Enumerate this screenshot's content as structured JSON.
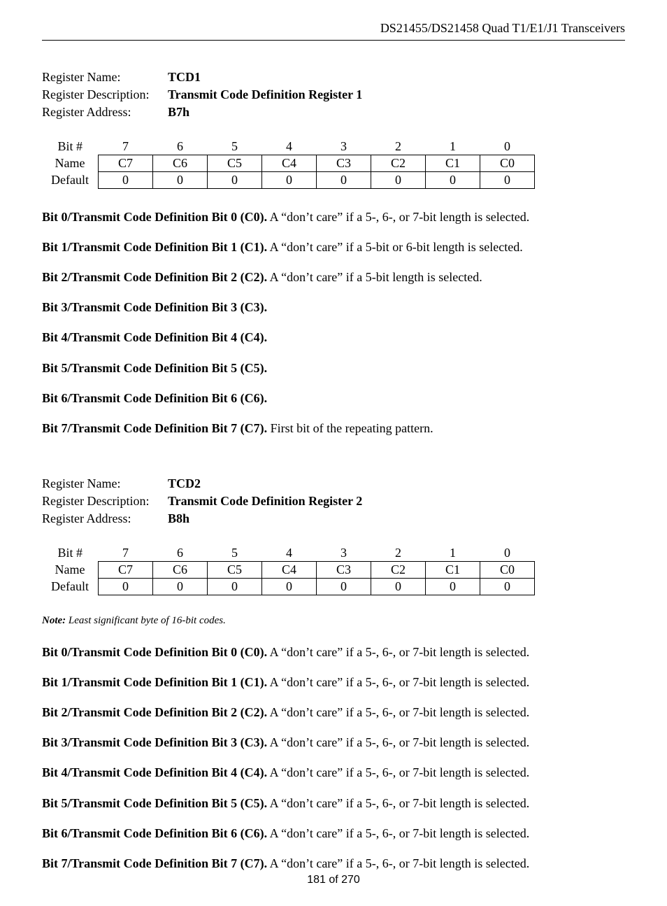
{
  "header": "DS21455/DS21458 Quad T1/E1/J1 Transceivers",
  "reg1": {
    "name_label": "Register Name:",
    "name_value": "TCD1",
    "desc_label": "Register Description:",
    "desc_value": "Transmit Code Definition Register 1",
    "addr_label": "Register Address:",
    "addr_value": "B7h",
    "table": {
      "row_bit_label": "Bit #",
      "row_name_label": "Name",
      "row_default_label": "Default",
      "bits": [
        "7",
        "6",
        "5",
        "4",
        "3",
        "2",
        "1",
        "0"
      ],
      "names": [
        "C7",
        "C6",
        "C5",
        "C4",
        "C3",
        "C2",
        "C1",
        "C0"
      ],
      "defaults": [
        "0",
        "0",
        "0",
        "0",
        "0",
        "0",
        "0",
        "0"
      ]
    },
    "descs": [
      {
        "bold": "Bit 0/Transmit Code Definition Bit 0 (C0).",
        "rest": " A “don’t care” if a 5-, 6-, or 7-bit length is selected."
      },
      {
        "bold": "Bit 1/Transmit Code Definition Bit 1 (C1).",
        "rest": " A “don’t care” if a 5-bit or 6-bit length is selected."
      },
      {
        "bold": "Bit 2/Transmit Code Definition Bit 2 (C2).",
        "rest": " A “don’t care” if a 5-bit length is selected."
      },
      {
        "bold": "Bit 3/Transmit Code Definition Bit 3 (C3).",
        "rest": ""
      },
      {
        "bold": "Bit 4/Transmit Code Definition Bit 4 (C4).",
        "rest": ""
      },
      {
        "bold": "Bit 5/Transmit Code Definition Bit 5 (C5).",
        "rest": ""
      },
      {
        "bold": "Bit 6/Transmit Code Definition Bit 6 (C6).",
        "rest": ""
      },
      {
        "bold": "Bit 7/Transmit Code Definition Bit 7 (C7).",
        "rest": " First bit of the repeating pattern."
      }
    ]
  },
  "reg2": {
    "name_label": "Register Name:",
    "name_value": "TCD2",
    "desc_label": "Register Description:",
    "desc_value": "Transmit Code Definition Register 2",
    "addr_label": "Register Address:",
    "addr_value": "B8h",
    "table": {
      "row_bit_label": "Bit #",
      "row_name_label": "Name",
      "row_default_label": "Default",
      "bits": [
        "7",
        "6",
        "5",
        "4",
        "3",
        "2",
        "1",
        "0"
      ],
      "names": [
        "C7",
        "C6",
        "C5",
        "C4",
        "C3",
        "C2",
        "C1",
        "C0"
      ],
      "defaults": [
        "0",
        "0",
        "0",
        "0",
        "0",
        "0",
        "0",
        "0"
      ]
    },
    "note_bold": "Note:",
    "note_rest": " Least significant byte of 16-bit codes.",
    "descs": [
      {
        "bold": "Bit 0/Transmit Code Definition Bit 0 (C0).",
        "rest": " A “don’t care” if a 5-, 6-, or 7-bit length is selected."
      },
      {
        "bold": "Bit 1/Transmit Code Definition Bit 1 (C1).",
        "rest": " A “don’t care” if a 5-, 6-, or 7-bit length is selected."
      },
      {
        "bold": "Bit 2/Transmit Code Definition Bit 2 (C2).",
        "rest": " A “don’t care” if a 5-, 6-, or 7-bit length is selected."
      },
      {
        "bold": "Bit 3/Transmit Code Definition Bit 3 (C3).",
        "rest": " A “don’t care” if a 5-, 6-, or 7-bit length is selected."
      },
      {
        "bold": "Bit 4/Transmit Code Definition Bit 4 (C4).",
        "rest": " A “don’t care” if a 5-, 6-, or 7-bit length is selected."
      },
      {
        "bold": "Bit 5/Transmit Code Definition Bit 5 (C5).",
        "rest": " A “don’t care” if a 5-, 6-, or 7-bit length is selected."
      },
      {
        "bold": "Bit 6/Transmit Code Definition Bit 6 (C6).",
        "rest": " A “don’t care” if a 5-, 6-, or 7-bit length is selected."
      },
      {
        "bold": "Bit 7/Transmit Code Definition Bit 7 (C7).",
        "rest": " A “don’t care” if a 5-, 6-, or 7-bit length is selected."
      }
    ]
  },
  "page_num": "181 of 270"
}
